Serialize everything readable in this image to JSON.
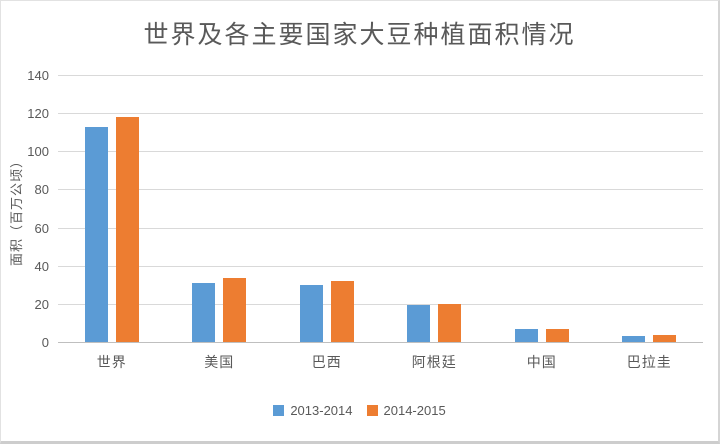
{
  "chart_data": {
    "type": "bar",
    "title": "世界及各主要国家大豆种植面积情况",
    "ylabel": "面积（百万公顷）",
    "xlabel": "",
    "categories": [
      "世界",
      "美国",
      "巴西",
      "阿根廷",
      "中国",
      "巴拉圭"
    ],
    "series": [
      {
        "name": "2013-2014",
        "color": "#5B9BD5",
        "values": [
          113,
          31,
          30,
          19.3,
          7,
          3.3
        ]
      },
      {
        "name": "2014-2015",
        "color": "#ED7D31",
        "values": [
          118,
          33.5,
          32,
          20,
          7,
          3.5
        ]
      }
    ],
    "ylim": [
      0,
      140
    ],
    "ytick_step": 20,
    "yticks": [
      0,
      20,
      40,
      60,
      80,
      100,
      120,
      140
    ],
    "grid": true,
    "legend_position": "bottom",
    "colors": {
      "text": "#595959",
      "gridline": "#D9D9D9",
      "axis_line": "#BFBFBF",
      "background": "#FFFFFF"
    }
  }
}
